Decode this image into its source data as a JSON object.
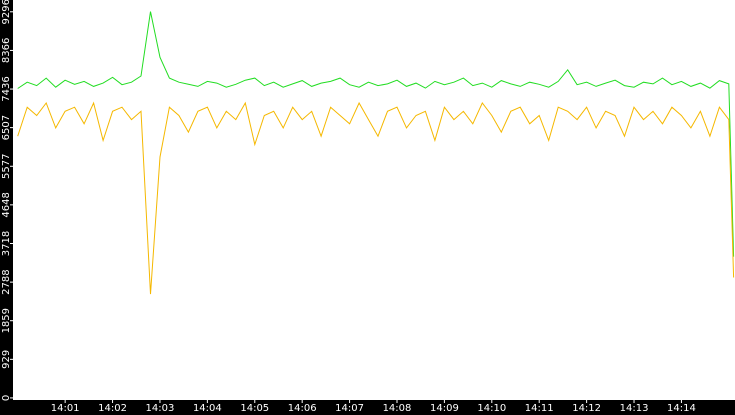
{
  "chart_data": {
    "type": "line",
    "x": [
      0,
      0.2,
      0.4,
      0.6,
      0.8,
      1,
      1.2,
      1.4,
      1.6,
      1.8,
      2,
      2.2,
      2.4,
      2.6,
      2.8,
      3,
      3.2,
      3.4,
      3.6,
      3.8,
      4,
      4.2,
      4.4,
      4.6,
      4.8,
      5,
      5.2,
      5.4,
      5.6,
      5.8,
      6,
      6.2,
      6.4,
      6.6,
      6.8,
      7,
      7.2,
      7.4,
      7.6,
      7.8,
      8,
      8.2,
      8.4,
      8.6,
      8.8,
      9,
      9.2,
      9.4,
      9.6,
      9.8,
      10,
      10.2,
      10.4,
      10.6,
      10.8,
      11,
      11.2,
      11.4,
      11.6,
      11.8,
      12,
      12.2,
      12.4,
      12.6,
      12.8,
      13,
      13.2,
      13.4,
      13.6,
      13.8,
      14,
      14.2,
      14.4,
      14.6,
      14.8,
      15,
      15.1
    ],
    "series": [
      {
        "color": "#22dd22",
        "values": [
          7450,
          7600,
          7520,
          7700,
          7480,
          7650,
          7550,
          7620,
          7500,
          7580,
          7720,
          7540,
          7600,
          7750,
          9300,
          8200,
          7700,
          7600,
          7550,
          7500,
          7620,
          7580,
          7480,
          7550,
          7650,
          7700,
          7520,
          7600,
          7480,
          7560,
          7640,
          7500,
          7580,
          7620,
          7700,
          7540,
          7480,
          7600,
          7520,
          7560,
          7650,
          7500,
          7580,
          7460,
          7620,
          7540,
          7600,
          7700,
          7520,
          7580,
          7480,
          7640,
          7560,
          7500,
          7600,
          7550,
          7480,
          7620,
          7900,
          7540,
          7600,
          7500,
          7580,
          7650,
          7520,
          7480,
          7600,
          7560,
          7700,
          7540,
          7620,
          7500,
          7580,
          7460,
          7640,
          7560,
          3400
        ]
      },
      {
        "color": "#f5b800",
        "values": [
          6300,
          7000,
          6800,
          7100,
          6500,
          6900,
          7000,
          6600,
          7100,
          6200,
          6900,
          7000,
          6700,
          6900,
          2500,
          5800,
          7000,
          6800,
          6400,
          6900,
          7000,
          6500,
          6900,
          6700,
          7100,
          6100,
          6800,
          6900,
          6500,
          7000,
          6700,
          6900,
          6300,
          7000,
          6800,
          6600,
          7100,
          6700,
          6300,
          6900,
          7000,
          6500,
          6800,
          6900,
          6200,
          7000,
          6700,
          6900,
          6600,
          7100,
          6800,
          6400,
          6900,
          7000,
          6600,
          6800,
          6200,
          7000,
          6900,
          6700,
          7000,
          6500,
          6900,
          6800,
          6300,
          7000,
          6700,
          6900,
          6600,
          7000,
          6800,
          6500,
          6900,
          6300,
          7000,
          6700,
          2900
        ]
      }
    ],
    "xlim": [
      -0.1,
      15.13
    ],
    "xticks": [
      {
        "value": 1,
        "label": "14:01"
      },
      {
        "value": 2,
        "label": "14:02"
      },
      {
        "value": 3,
        "label": "14:03"
      },
      {
        "value": 4,
        "label": "14:04"
      },
      {
        "value": 5,
        "label": "14:05"
      },
      {
        "value": 6,
        "label": "14:06"
      },
      {
        "value": 7,
        "label": "14:07"
      },
      {
        "value": 8,
        "label": "14:08"
      },
      {
        "value": 9,
        "label": "14:09"
      },
      {
        "value": 10,
        "label": "14:10"
      },
      {
        "value": 11,
        "label": "14:11"
      },
      {
        "value": 12,
        "label": "14:12"
      },
      {
        "value": 13,
        "label": "14:13"
      },
      {
        "value": 14,
        "label": "14:14"
      }
    ],
    "ylim": [
      -50,
      9580
    ],
    "yticks": [
      0,
      929,
      1859,
      2788,
      3718,
      4648,
      5577,
      6507,
      7436,
      8366,
      9296
    ]
  }
}
